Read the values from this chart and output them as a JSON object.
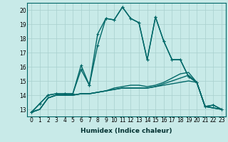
{
  "xlabel": "Humidex (Indice chaleur)",
  "bg_color": "#c8eae8",
  "grid_color": "#a8d0ce",
  "line_color": "#006868",
  "xlim": [
    -0.5,
    23.5
  ],
  "ylim": [
    12.5,
    20.5
  ],
  "yticks": [
    13,
    14,
    15,
    16,
    17,
    18,
    19,
    20
  ],
  "xticks": [
    0,
    1,
    2,
    3,
    4,
    5,
    6,
    7,
    8,
    9,
    10,
    11,
    12,
    13,
    14,
    15,
    16,
    17,
    18,
    19,
    20,
    21,
    22,
    23
  ],
  "series": [
    [
      12.8,
      13.4,
      14.0,
      14.1,
      14.1,
      14.1,
      16.1,
      14.7,
      18.3,
      19.4,
      19.3,
      20.2,
      19.4,
      19.1,
      16.5,
      19.5,
      17.8,
      16.5,
      16.5,
      15.3,
      14.9,
      13.2,
      13.3,
      13.0
    ],
    [
      12.8,
      13.4,
      14.0,
      14.1,
      14.1,
      14.1,
      15.8,
      14.7,
      17.5,
      19.4,
      19.3,
      20.2,
      19.4,
      19.1,
      16.5,
      19.5,
      17.8,
      16.5,
      16.5,
      15.3,
      14.9,
      13.2,
      13.3,
      13.0
    ],
    [
      12.8,
      13.0,
      13.8,
      14.0,
      14.0,
      14.0,
      14.1,
      14.1,
      14.2,
      14.3,
      14.5,
      14.6,
      14.7,
      14.7,
      14.6,
      14.7,
      14.9,
      15.2,
      15.5,
      15.6,
      14.9,
      13.2,
      13.1,
      13.0
    ],
    [
      12.8,
      13.0,
      13.8,
      14.0,
      14.0,
      14.0,
      14.1,
      14.1,
      14.2,
      14.3,
      14.4,
      14.5,
      14.5,
      14.5,
      14.5,
      14.6,
      14.8,
      15.0,
      15.2,
      15.4,
      14.9,
      13.2,
      13.1,
      13.0
    ],
    [
      12.8,
      13.0,
      13.8,
      14.0,
      14.0,
      14.0,
      14.1,
      14.1,
      14.2,
      14.3,
      14.4,
      14.5,
      14.5,
      14.5,
      14.5,
      14.6,
      14.7,
      14.8,
      14.9,
      15.0,
      14.9,
      13.2,
      13.1,
      13.0
    ]
  ],
  "marker_series": [
    0,
    1
  ],
  "line_widths": [
    1.0,
    1.0,
    1.0,
    1.0,
    1.0
  ],
  "marker_size": 3.0,
  "tick_fontsize": 5.5,
  "xlabel_fontsize": 6.5
}
